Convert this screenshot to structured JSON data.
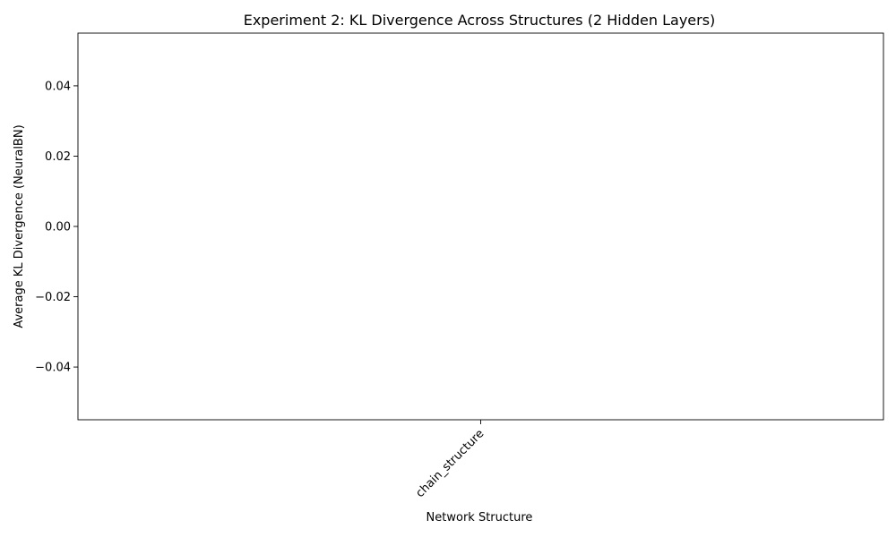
{
  "chart_data": {
    "type": "bar",
    "title": "Experiment 2: KL Divergence Across Structures (2 Hidden Layers)",
    "xlabel": "Network Structure",
    "ylabel": "Average KL Divergence (NeuralBN)",
    "categories": [
      "chain_structure"
    ],
    "values": [
      0
    ],
    "ylim": [
      -0.055,
      0.055
    ],
    "yticks": [
      -0.04,
      -0.02,
      0.0,
      0.02,
      0.04
    ],
    "ytick_labels": [
      "−0.04",
      "−0.02",
      "0.00",
      "0.02",
      "0.04"
    ],
    "grid": false,
    "legend": "none",
    "colors": {
      "axis": "#000000",
      "bar": "#1f77b4",
      "background": "#ffffff"
    }
  }
}
